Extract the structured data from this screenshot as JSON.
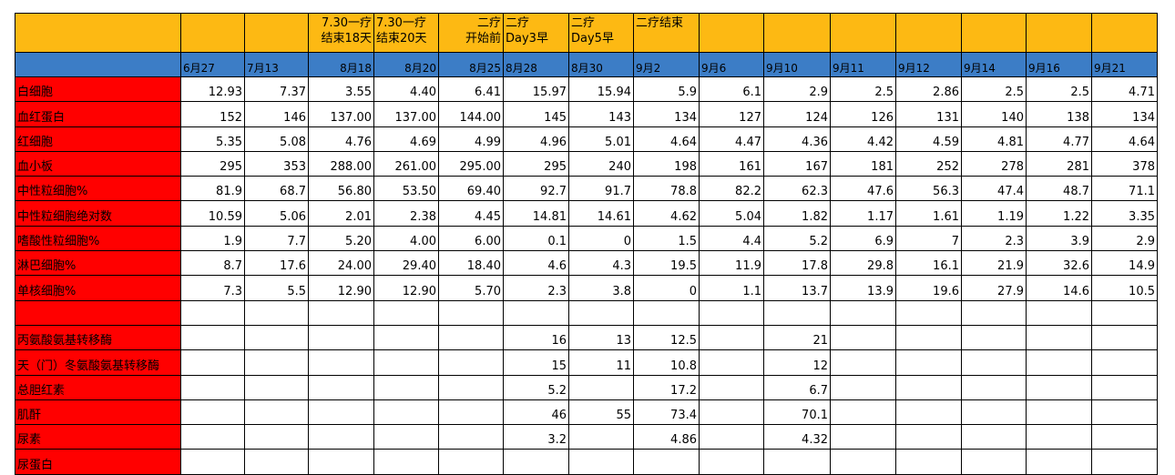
{
  "header_top": [
    "",
    "",
    "",
    "7.30一疗\n结束18天",
    "7.30一疗\n结束20天",
    "二疗\n开始前",
    "二疗\nDay3早",
    "二疗\nDay5早",
    "二疗结束",
    "",
    "",
    "",
    "",
    "",
    "",
    ""
  ],
  "header_dates": [
    "",
    "6月27",
    "7月13",
    "8月18",
    "8月20",
    "8月25",
    "8月28",
    "8月30",
    "9月2",
    "9月6",
    "9月10",
    "9月11",
    "9月12",
    "9月14",
    "9月16",
    "9月21"
  ],
  "rows": [
    {
      "label": "白细胞",
      "values": [
        "12.93",
        "7.37",
        "3.55",
        "4.40",
        "6.41",
        "15.97",
        "15.94",
        "5.9",
        "6.1",
        "2.9",
        "2.5",
        "2.86",
        "2.5",
        "2.5",
        "4.71"
      ]
    },
    {
      "label": "血红蛋白",
      "values": [
        "152",
        "146",
        "137.00",
        "137.00",
        "144.00",
        "145",
        "143",
        "134",
        "127",
        "124",
        "126",
        "131",
        "140",
        "138",
        "134"
      ]
    },
    {
      "label": "红细胞",
      "values": [
        "5.35",
        "5.08",
        "4.76",
        "4.69",
        "4.99",
        "4.96",
        "5.01",
        "4.64",
        "4.47",
        "4.36",
        "4.42",
        "4.59",
        "4.81",
        "4.77",
        "4.64"
      ]
    },
    {
      "label": "血小板",
      "values": [
        "295",
        "353",
        "288.00",
        "261.00",
        "295.00",
        "295",
        "240",
        "198",
        "161",
        "167",
        "181",
        "252",
        "278",
        "281",
        "378"
      ]
    },
    {
      "label": "中性粒细胞%",
      "values": [
        "81.9",
        "68.7",
        "56.80",
        "53.50",
        "69.40",
        "92.7",
        "91.7",
        "78.8",
        "82.2",
        "62.3",
        "47.6",
        "56.3",
        "47.4",
        "48.7",
        "71.1"
      ]
    },
    {
      "label": "中性粒细胞绝对数",
      "values": [
        "10.59",
        "5.06",
        "2.01",
        "2.38",
        "4.45",
        "14.81",
        "14.61",
        "4.62",
        "5.04",
        "1.82",
        "1.17",
        "1.61",
        "1.19",
        "1.22",
        "3.35"
      ]
    },
    {
      "label": "嗜酸性粒细胞%",
      "values": [
        "1.9",
        "7.7",
        "5.20",
        "4.00",
        "6.00",
        "0.1",
        "0",
        "1.5",
        "4.4",
        "5.2",
        "6.9",
        "7",
        "2.3",
        "3.9",
        "2.9"
      ]
    },
    {
      "label": "淋巴细胞%",
      "values": [
        "8.7",
        "17.6",
        "24.00",
        "29.40",
        "18.40",
        "4.6",
        "4.3",
        "19.5",
        "11.9",
        "17.8",
        "29.8",
        "16.1",
        "21.9",
        "32.6",
        "14.9"
      ]
    },
    {
      "label": "单核细胞%",
      "values": [
        "7.3",
        "5.5",
        "12.90",
        "12.90",
        "5.70",
        "2.3",
        "3.8",
        "0",
        "1.1",
        "13.7",
        "13.9",
        "19.6",
        "27.9",
        "14.6",
        "10.5"
      ]
    },
    {
      "label": "",
      "values": [
        "",
        "",
        "",
        "",
        "",
        "",
        "",
        "",
        "",
        "",
        "",
        "",
        "",
        "",
        ""
      ]
    },
    {
      "label": "丙氨酸氨基转移酶",
      "values": [
        "",
        "",
        "",
        "",
        "",
        "16",
        "13",
        "12.5",
        "",
        "21",
        "",
        "",
        "",
        "",
        ""
      ]
    },
    {
      "label": "天（门）冬氨酸氨基转移酶",
      "values": [
        "",
        "",
        "",
        "",
        "",
        "15",
        "11",
        "10.8",
        "",
        "12",
        "",
        "",
        "",
        "",
        ""
      ]
    },
    {
      "label": "总胆红素",
      "values": [
        "",
        "",
        "",
        "",
        "",
        "5.2",
        "",
        "17.2",
        "",
        "6.7",
        "",
        "",
        "",
        "",
        ""
      ]
    },
    {
      "label": "肌酐",
      "values": [
        "",
        "",
        "",
        "",
        "",
        "46",
        "55",
        "73.4",
        "",
        "70.1",
        "",
        "",
        "",
        "",
        ""
      ]
    },
    {
      "label": "尿素",
      "values": [
        "",
        "",
        "",
        "",
        "",
        "3.2",
        "",
        "4.86",
        "",
        "4.32",
        "",
        "",
        "",
        "",
        ""
      ]
    },
    {
      "label": "尿蛋白",
      "values": [
        "",
        "",
        "",
        "",
        "",
        "",
        "",
        "",
        "",
        "",
        "",
        "",
        "",
        "",
        ""
      ]
    }
  ],
  "colors": {
    "header_yellow": "#FDB913",
    "header_blue": "#3C7DC6",
    "label_red": "#FF0000"
  }
}
